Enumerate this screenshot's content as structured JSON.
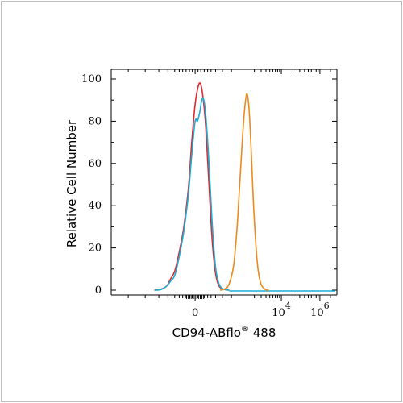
{
  "chart_data": {
    "type": "line",
    "xlabel": "CD94-ABflo",
    "xlabel_sup": "®",
    "xlabel_suffix": " 488",
    "ylabel": "Relative Cell Number",
    "ylim": [
      0,
      100
    ],
    "y_ticks": [
      "0",
      "20",
      "40",
      "60",
      "80",
      "100"
    ],
    "x_ticks": [
      {
        "label": "0",
        "exp": ""
      },
      {
        "label": "10",
        "exp": "4"
      },
      {
        "label": "10",
        "exp": "6"
      }
    ],
    "series": [
      {
        "color": "#e0282f",
        "points": [
          [
            -3.6,
            0
          ],
          [
            -3.0,
            0.5
          ],
          [
            -2.5,
            2
          ],
          [
            -2.2,
            5
          ],
          [
            -1.8,
            9
          ],
          [
            -1.4,
            18
          ],
          [
            -1.0,
            30
          ],
          [
            -0.6,
            48
          ],
          [
            -0.3,
            70
          ],
          [
            0.0,
            88
          ],
          [
            0.25,
            96
          ],
          [
            0.45,
            98
          ],
          [
            0.65,
            93
          ],
          [
            0.9,
            80
          ],
          [
            1.2,
            52
          ],
          [
            1.5,
            24
          ],
          [
            1.8,
            8
          ],
          [
            2.1,
            2
          ],
          [
            2.5,
            0.5
          ],
          [
            3.0,
            0
          ]
        ]
      },
      {
        "color": "#1aaed6",
        "points": [
          [
            -3.6,
            0
          ],
          [
            -3.0,
            0.3
          ],
          [
            -2.5,
            2
          ],
          [
            -2.2,
            4
          ],
          [
            -1.8,
            7
          ],
          [
            -1.4,
            16
          ],
          [
            -1.0,
            28
          ],
          [
            -0.6,
            45
          ],
          [
            -0.3,
            64
          ],
          [
            0.0,
            80
          ],
          [
            0.2,
            80
          ],
          [
            0.4,
            84
          ],
          [
            0.65,
            91
          ],
          [
            0.9,
            85
          ],
          [
            1.2,
            62
          ],
          [
            1.5,
            32
          ],
          [
            1.8,
            11
          ],
          [
            2.1,
            3
          ],
          [
            2.5,
            0.5
          ],
          [
            3.0,
            0
          ]
        ]
      },
      {
        "color": "#ef8a1a",
        "points": [
          [
            2.2,
            0
          ],
          [
            2.6,
            0.5
          ],
          [
            3.0,
            3
          ],
          [
            3.4,
            12
          ],
          [
            3.7,
            30
          ],
          [
            3.95,
            52
          ],
          [
            4.15,
            70
          ],
          [
            4.35,
            85
          ],
          [
            4.55,
            93
          ],
          [
            4.75,
            86
          ],
          [
            4.95,
            65
          ],
          [
            5.2,
            35
          ],
          [
            5.5,
            12
          ],
          [
            5.8,
            3
          ],
          [
            6.2,
            0.3
          ],
          [
            6.5,
            0
          ]
        ]
      }
    ],
    "baseline": {
      "color": "#1aaed6",
      "x_range": [
        3.0,
        14.0
      ]
    }
  }
}
